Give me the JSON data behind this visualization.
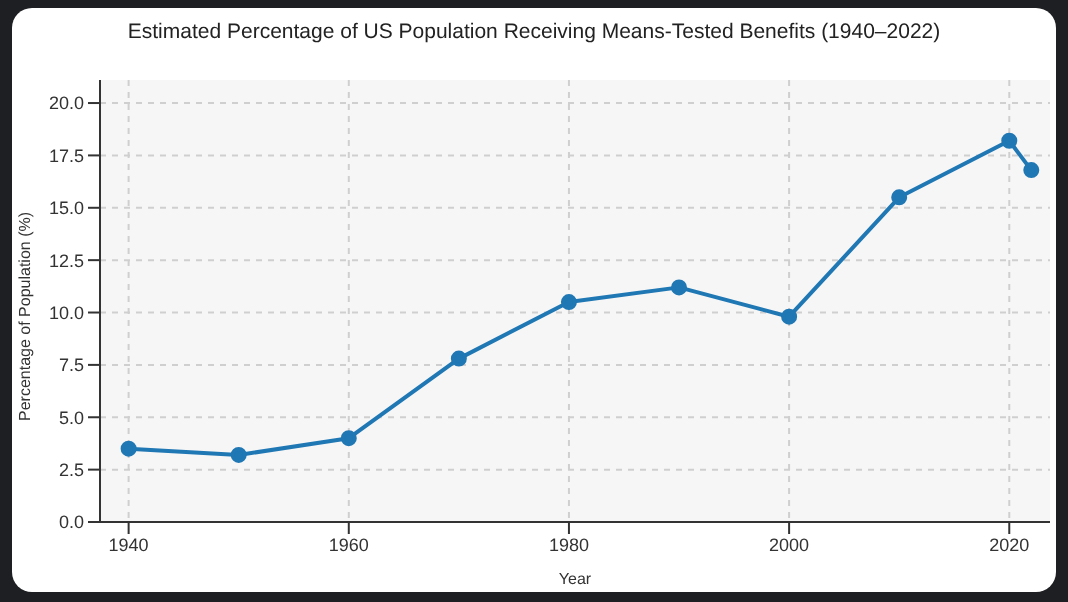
{
  "chart_data": {
    "type": "line",
    "title": "Estimated Percentage of US Population Receiving Means-Tested Benefits (1940–2022)",
    "xlabel": "Year",
    "ylabel": "Percentage of Population (%)",
    "x": [
      1940,
      1950,
      1960,
      1970,
      1980,
      1990,
      2000,
      2010,
      2020,
      2022
    ],
    "series": [
      {
        "color": "#1f77b4",
        "values": [
          3.5,
          3.2,
          4.0,
          7.8,
          10.5,
          11.2,
          9.8,
          15.5,
          18.2,
          16.8
        ]
      }
    ],
    "xlim": [
      1937.4,
      2023.7
    ],
    "xticks": [
      1940,
      1960,
      1980,
      2000,
      2020
    ],
    "ylim": [
      0,
      21.1
    ],
    "yticks": [
      {
        "value": 0,
        "label": "0.0"
      },
      {
        "value": 2.5,
        "label": "2.5"
      },
      {
        "value": 5,
        "label": "5.0"
      },
      {
        "value": 7.5,
        "label": "7.5"
      },
      {
        "value": 10,
        "label": "10.0"
      },
      {
        "value": 12.5,
        "label": "12.5"
      },
      {
        "value": 15,
        "label": "15.0"
      },
      {
        "value": 17.5,
        "label": "17.5"
      },
      {
        "value": 20,
        "label": "20.0"
      }
    ],
    "grid": true,
    "marker": "circle",
    "line_style": "solid"
  }
}
